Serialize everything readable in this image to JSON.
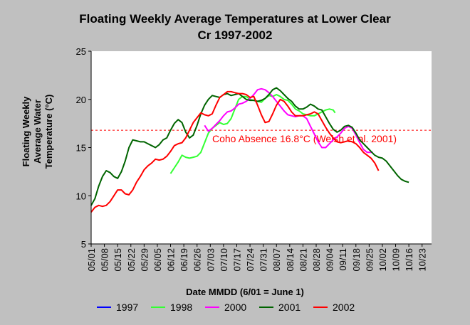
{
  "chart_data": {
    "type": "line",
    "title_lines": [
      "Floating Weekly Average Temperatures at Lower Clear",
      "Cr 1997-2002"
    ],
    "xlabel": "Date MMDD (6/01 = June 1)",
    "ylabel_lines": [
      "Floating Weekly",
      "Average Water",
      "Temperature (°C)"
    ],
    "ylim": [
      5,
      25
    ],
    "yticks": [
      5,
      10,
      15,
      20,
      25
    ],
    "xticks": [
      "05/01",
      "05/08",
      "05/15",
      "05/22",
      "05/29",
      "06/05",
      "06/12",
      "06/19",
      "06/26",
      "07/03",
      "07/10",
      "07/17",
      "07/24",
      "07/31",
      "08/07",
      "08/14",
      "08/21",
      "08/28",
      "09/04",
      "09/11",
      "09/18",
      "09/25",
      "10/02",
      "10/09",
      "10/16",
      "10/23"
    ],
    "x_day_range": [
      0,
      180
    ],
    "reference_line": {
      "value": 16.8,
      "label": "Coho Absence 16.8°C (Welsh et al. 2001)",
      "color": "#ff0000",
      "style": "dashed"
    },
    "grid": false,
    "legend_position": "bottom",
    "series": [
      {
        "name": "1997",
        "color": "#0000ff",
        "x": [],
        "y": []
      },
      {
        "name": "1998",
        "color": "#33ff33",
        "x": [
          42,
          44,
          46,
          48,
          50,
          52,
          54,
          56,
          58,
          60,
          62,
          64,
          66,
          68,
          70,
          72,
          74,
          76,
          78,
          80,
          82,
          84,
          86,
          88,
          90,
          92,
          94,
          96,
          98,
          100,
          102,
          104,
          106,
          108,
          110,
          112,
          114,
          116,
          118,
          120,
          122,
          124,
          126,
          128,
          129
        ],
        "y": [
          12.3,
          12.9,
          13.5,
          14.2,
          14.0,
          13.9,
          14.0,
          14.1,
          14.5,
          15.5,
          16.5,
          17.0,
          17.3,
          17.6,
          17.4,
          17.5,
          18.0,
          19.0,
          20.0,
          20.3,
          20.3,
          20.0,
          19.9,
          19.8,
          19.7,
          20.1,
          20.4,
          20.3,
          20.5,
          20.3,
          20.0,
          19.9,
          19.5,
          19.0,
          18.8,
          18.5,
          18.4,
          18.3,
          18.3,
          18.5,
          18.7,
          18.9,
          19.0,
          18.9,
          18.6
        ]
      },
      {
        "name": "2000",
        "color": "#ff00ff",
        "x": [
          60,
          62,
          64,
          66,
          68,
          70,
          72,
          74,
          76,
          78,
          80,
          82,
          84,
          86,
          88,
          90,
          92,
          94,
          96,
          98,
          100,
          102,
          104,
          106,
          108,
          110,
          112,
          114,
          116,
          118,
          120,
          122,
          124,
          126,
          128,
          130,
          132,
          134,
          136,
          138,
          140,
          142,
          144,
          146,
          148,
          149
        ],
        "y": [
          17.3,
          16.7,
          17.0,
          17.4,
          17.8,
          18.3,
          18.7,
          18.8,
          19.1,
          19.5,
          19.6,
          19.8,
          20.1,
          20.5,
          21.0,
          21.1,
          21.0,
          20.7,
          20.3,
          19.8,
          19.3,
          18.8,
          18.4,
          18.3,
          18.2,
          18.3,
          18.3,
          18.0,
          17.2,
          16.4,
          15.6,
          15.0,
          15.0,
          15.4,
          15.8,
          16.1,
          16.5,
          17.0,
          17.2,
          17.0,
          16.3,
          15.5,
          14.8,
          14.5,
          14.5,
          14.5
        ]
      },
      {
        "name": "2001",
        "color": "#006400",
        "x": [
          0,
          2,
          4,
          6,
          8,
          10,
          12,
          14,
          16,
          18,
          20,
          22,
          24,
          26,
          28,
          30,
          32,
          34,
          36,
          38,
          40,
          42,
          44,
          46,
          48,
          50,
          52,
          54,
          56,
          58,
          60,
          62,
          64,
          66,
          68,
          70,
          72,
          74,
          76,
          78,
          80,
          82,
          84,
          86,
          88,
          90,
          92,
          94,
          96,
          98,
          100,
          102,
          104,
          106,
          108,
          110,
          112,
          114,
          116,
          118,
          120,
          122,
          124,
          126,
          128,
          130,
          132,
          134,
          136,
          138,
          140,
          142,
          144,
          146,
          148,
          150,
          152,
          154,
          156,
          158,
          160,
          162,
          164,
          166,
          168
        ],
        "y": [
          9.0,
          9.7,
          11.0,
          12.0,
          12.6,
          12.4,
          12.0,
          11.8,
          12.5,
          13.6,
          15.0,
          15.8,
          15.7,
          15.6,
          15.6,
          15.4,
          15.2,
          15.0,
          15.3,
          15.8,
          16.0,
          16.8,
          17.5,
          17.9,
          17.6,
          16.6,
          16.0,
          16.3,
          17.3,
          18.5,
          19.4,
          20.0,
          20.4,
          20.3,
          20.2,
          20.5,
          20.6,
          20.4,
          20.5,
          20.6,
          20.3,
          20.0,
          19.9,
          19.9,
          19.8,
          19.9,
          20.1,
          20.5,
          21.0,
          21.2,
          20.9,
          20.5,
          20.1,
          19.8,
          19.3,
          19.0,
          19.0,
          19.2,
          19.5,
          19.3,
          19.0,
          18.9,
          18.2,
          17.5,
          16.9,
          16.6,
          16.8,
          17.2,
          17.3,
          17.1,
          16.5,
          15.8,
          15.4,
          15.0,
          14.6,
          14.2,
          14.0,
          13.9,
          13.6,
          13.1,
          12.6,
          12.1,
          11.7,
          11.5,
          11.4
        ]
      },
      {
        "name": "2002",
        "color": "#ff0000",
        "x": [
          0,
          2,
          4,
          6,
          8,
          10,
          12,
          14,
          16,
          18,
          20,
          22,
          24,
          26,
          28,
          30,
          32,
          34,
          36,
          38,
          40,
          42,
          44,
          46,
          48,
          50,
          52,
          54,
          56,
          58,
          60,
          62,
          64,
          66,
          68,
          70,
          72,
          74,
          76,
          78,
          80,
          82,
          84,
          86,
          88,
          90,
          92,
          94,
          96,
          98,
          100,
          102,
          104,
          106,
          108,
          110,
          112,
          114,
          116,
          118,
          120,
          122,
          124,
          126,
          128,
          130,
          132,
          134,
          136,
          138,
          140,
          142,
          144,
          146,
          148,
          150,
          152
        ],
        "y": [
          8.3,
          8.8,
          9.0,
          8.9,
          9.0,
          9.4,
          10.0,
          10.6,
          10.6,
          10.2,
          10.1,
          10.6,
          11.4,
          12.0,
          12.7,
          13.1,
          13.4,
          13.8,
          13.7,
          13.8,
          14.1,
          14.6,
          15.2,
          15.4,
          15.5,
          16.0,
          16.8,
          17.6,
          18.1,
          18.6,
          18.4,
          18.3,
          18.5,
          19.4,
          20.2,
          20.5,
          20.8,
          20.8,
          20.7,
          20.6,
          20.6,
          20.5,
          20.2,
          20.3,
          19.4,
          18.4,
          17.6,
          17.7,
          18.5,
          19.4,
          20.0,
          19.8,
          19.3,
          18.7,
          18.3,
          18.3,
          18.3,
          18.4,
          18.5,
          18.7,
          18.5,
          17.8,
          17.1,
          16.5,
          16.0,
          15.6,
          15.5,
          15.6,
          15.7,
          15.6,
          15.4,
          15.0,
          14.5,
          14.2,
          13.9,
          13.4,
          12.6
        ]
      }
    ]
  }
}
